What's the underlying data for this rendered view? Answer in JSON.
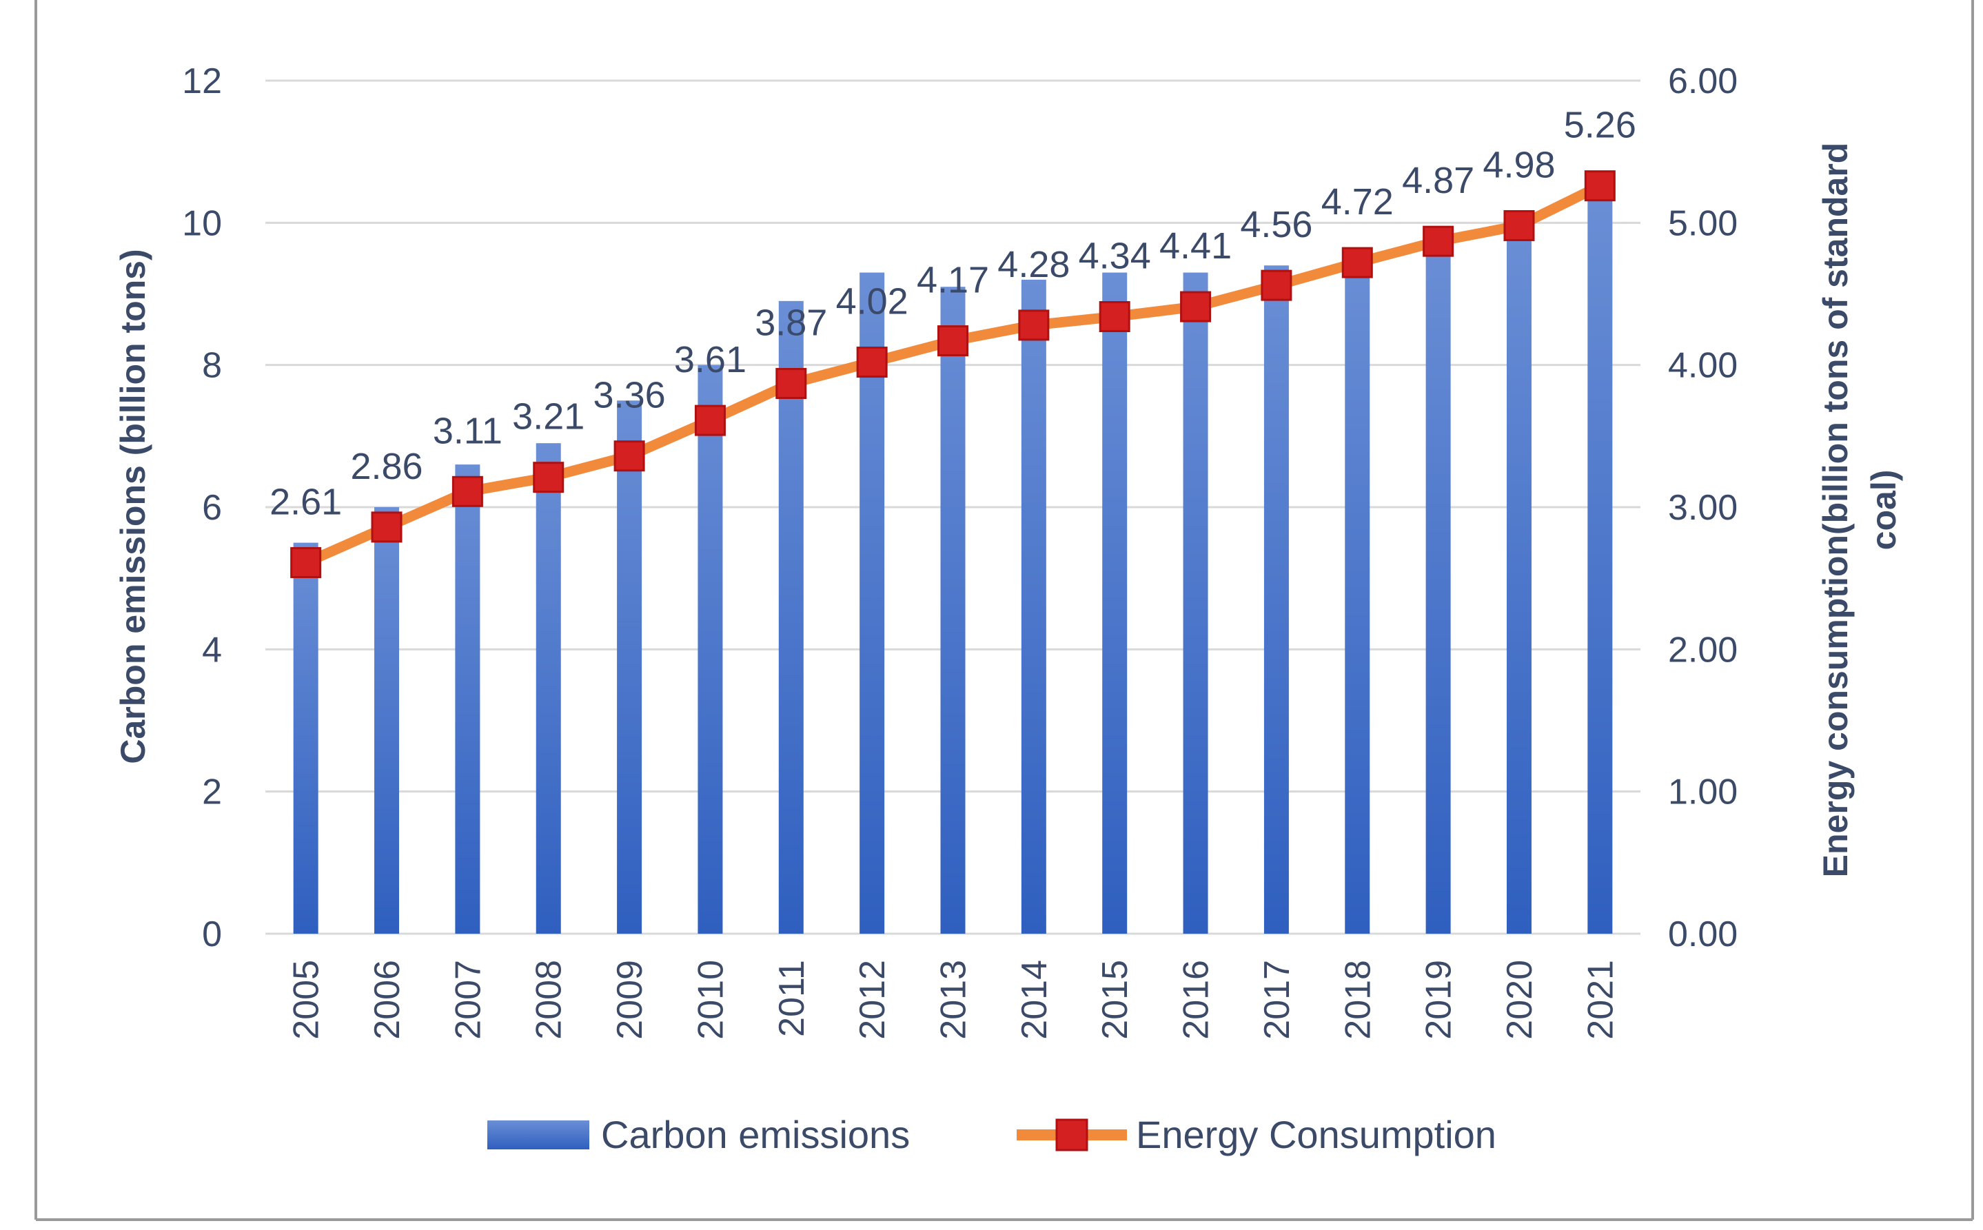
{
  "chart_data": {
    "type": "bar+line",
    "categories": [
      "2005",
      "2006",
      "2007",
      "2008",
      "2009",
      "2010",
      "2011",
      "2012",
      "2013",
      "2014",
      "2015",
      "2016",
      "2017",
      "2018",
      "2019",
      "2020",
      "2021"
    ],
    "series": [
      {
        "name": "Carbon emissions",
        "type": "bar",
        "axis": "left",
        "values": [
          5.5,
          6.0,
          6.6,
          6.9,
          7.5,
          8.0,
          8.9,
          9.3,
          9.1,
          9.2,
          9.3,
          9.3,
          9.4,
          9.6,
          9.8,
          10.0,
          10.5
        ]
      },
      {
        "name": "Energy Consumption",
        "type": "line",
        "axis": "right",
        "values": [
          2.61,
          2.86,
          3.11,
          3.21,
          3.36,
          3.61,
          3.87,
          4.02,
          4.17,
          4.28,
          4.34,
          4.41,
          4.56,
          4.72,
          4.87,
          4.98,
          5.26
        ],
        "labels": [
          "2.61",
          "2.86",
          "3.11",
          "3.21",
          "3.36",
          "3.61",
          "3.87",
          "4.02",
          "4.17",
          "4.28",
          "4.34",
          "4.41",
          "4.56",
          "4.72",
          "4.87",
          "4.98",
          "5.26"
        ]
      }
    ],
    "left_axis": {
      "title": "Carbon emissions (billion tons)",
      "ylim": [
        0,
        12
      ],
      "ticks": [
        "0",
        "2",
        "4",
        "6",
        "8",
        "10",
        "12"
      ]
    },
    "right_axis": {
      "title_line1": "Energy consumption(billion  tons of standard",
      "title_line2": "coal)",
      "ylim": [
        0,
        6
      ],
      "ticks": [
        "0.00",
        "1.00",
        "2.00",
        "3.00",
        "4.00",
        "5.00",
        "6.00"
      ]
    },
    "legend": {
      "position": "bottom",
      "items": [
        "Carbon emissions",
        "Energy Consumption"
      ]
    },
    "grid": true,
    "colors": {
      "bar_top": "#6b8fd6",
      "bar_bottom": "#2f5fbf",
      "line": "#f28a3b",
      "marker": "#d42020",
      "marker_edge": "#b01010",
      "text": "#3b4a68",
      "grid": "#d9d9d9"
    }
  }
}
